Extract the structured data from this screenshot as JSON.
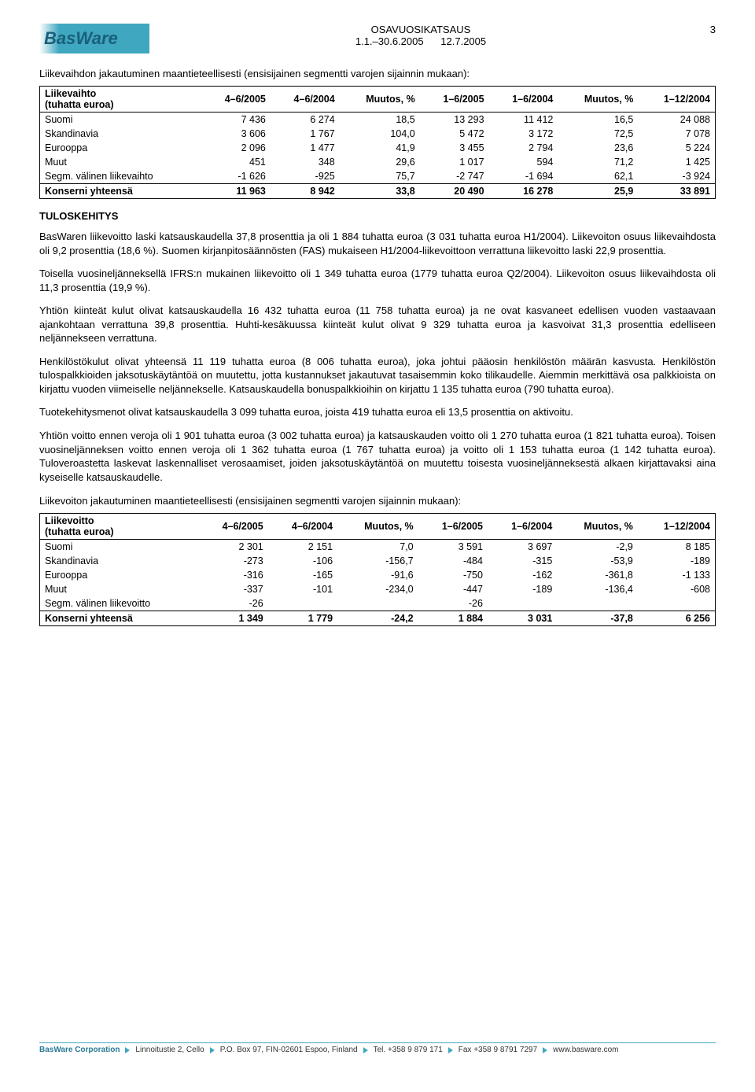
{
  "header": {
    "logo_text": "BasWare",
    "doc_type": "OSAVUOSIKATSAUS",
    "period": "1.1.–30.6.2005",
    "date": "12.7.2005",
    "page_number": "3"
  },
  "section1": {
    "intro": "Liikevaihdon jakautuminen maantieteellisesti (ensisijainen segmentti varojen sijainnin mukaan):",
    "table_label1": "Liikevaihto",
    "table_label2": "(tuhatta euroa)",
    "columns": [
      "4–6/2005",
      "4–6/2004",
      "Muutos, %",
      "1–6/2005",
      "1–6/2004",
      "Muutos, %",
      "1–12/2004"
    ],
    "rows": [
      {
        "label": "Suomi",
        "cells": [
          "7 436",
          "6 274",
          "18,5",
          "13 293",
          "11 412",
          "16,5",
          "24 088"
        ]
      },
      {
        "label": "Skandinavia",
        "cells": [
          "3 606",
          "1 767",
          "104,0",
          "5 472",
          "3 172",
          "72,5",
          "7 078"
        ]
      },
      {
        "label": "Eurooppa",
        "cells": [
          "2 096",
          "1 477",
          "41,9",
          "3 455",
          "2 794",
          "23,6",
          "5 224"
        ]
      },
      {
        "label": "Muut",
        "cells": [
          "451",
          "348",
          "29,6",
          "1 017",
          "594",
          "71,2",
          "1 425"
        ]
      },
      {
        "label": "Segm. välinen liikevaihto",
        "cells": [
          "-1 626",
          "-925",
          "75,7",
          "-2 747",
          "-1 694",
          "62,1",
          "-3 924"
        ]
      }
    ],
    "total": {
      "label": "Konserni yhteensä",
      "cells": [
        "11 963",
        "8 942",
        "33,8",
        "20 490",
        "16 278",
        "25,9",
        "33 891"
      ]
    }
  },
  "tuloskehitys": {
    "heading": "TULOSKEHITYS",
    "p1": "BasWaren liikevoitto laski katsauskaudella 37,8 prosenttia ja oli 1 884 tuhatta euroa (3 031 tuhatta euroa H1/2004). Liikevoiton osuus liikevaihdosta oli 9,2 prosenttia (18,6 %). Suomen kirjanpitosäännösten (FAS) mukaiseen H1/2004-liikevoittoon verrattuna liikevoitto laski 22,9 prosenttia.",
    "p2": "Toisella vuosineljänneksellä IFRS:n mukainen liikevoitto oli 1 349 tuhatta euroa (1779 tuhatta euroa Q2/2004). Liikevoiton osuus liikevaihdosta oli 11,3 prosenttia (19,9 %).",
    "p3": "Yhtiön kiinteät kulut olivat katsauskaudella 16 432 tuhatta euroa (11 758 tuhatta euroa) ja ne ovat kasvaneet edellisen vuoden vastaavaan ajankohtaan verrattuna 39,8 prosenttia. Huhti-kesäkuussa kiinteät kulut olivat 9 329 tuhatta euroa ja kasvoivat 31,3 prosenttia edelliseen neljännekseen verrattuna.",
    "p4": "Henkilöstökulut olivat yhteensä 11 119 tuhatta euroa (8 006 tuhatta euroa), joka johtui pääosin henkilöstön määrän kasvusta. Henkilöstön tulospalkkioiden jaksotuskäytäntöä on muutettu, jotta kustannukset jakautuvat tasaisemmin koko tilikaudelle. Aiemmin merkittävä osa palkkioista on kirjattu vuoden viimeiselle neljännekselle. Katsauskaudella bonuspalkkioihin on kirjattu 1 135 tuhatta euroa (790 tuhatta euroa).",
    "p5": "Tuotekehitysmenot olivat katsauskaudella 3 099 tuhatta euroa, joista 419 tuhatta euroa eli 13,5 prosenttia on aktivoitu.",
    "p6": "Yhtiön voitto ennen veroja oli 1 901 tuhatta euroa (3 002 tuhatta euroa) ja katsauskauden voitto oli 1 270 tuhatta euroa (1 821 tuhatta euroa). Toisen vuosineljänneksen voitto ennen veroja oli 1 362 tuhatta euroa (1 767 tuhatta euroa) ja voitto oli 1 153 tuhatta euroa (1 142 tuhatta euroa). Tuloveroastetta laskevat laskennalliset verosaamiset, joiden jaksotuskäytäntöä on muutettu toisesta vuosineljänneksestä alkaen kirjattavaksi aina kyseiselle katsauskaudelle.",
    "p7": "Liikevoiton jakautuminen maantieteellisesti (ensisijainen segmentti varojen sijainnin mukaan):"
  },
  "section2": {
    "table_label1": "Liikevoitto",
    "table_label2": "(tuhatta euroa)",
    "columns": [
      "4–6/2005",
      "4–6/2004",
      "Muutos, %",
      "1–6/2005",
      "1–6/2004",
      "Muutos, %",
      "1–12/2004"
    ],
    "rows": [
      {
        "label": "Suomi",
        "cells": [
          "2 301",
          "2 151",
          "7,0",
          "3 591",
          "3 697",
          "-2,9",
          "8 185"
        ]
      },
      {
        "label": "Skandinavia",
        "cells": [
          "-273",
          "-106",
          "-156,7",
          "-484",
          "-315",
          "-53,9",
          "-189"
        ]
      },
      {
        "label": "Eurooppa",
        "cells": [
          "-316",
          "-165",
          "-91,6",
          "-750",
          "-162",
          "-361,8",
          "-1 133"
        ]
      },
      {
        "label": "Muut",
        "cells": [
          "-337",
          "-101",
          "-234,0",
          "-447",
          "-189",
          "-136,4",
          "-608"
        ]
      },
      {
        "label": "Segm. välinen liikevoitto",
        "cells": [
          "-26",
          "",
          "",
          "-26",
          "",
          "",
          ""
        ]
      }
    ],
    "total": {
      "label": "Konserni yhteensä",
      "cells": [
        "1 349",
        "1 779",
        "-24,2",
        "1 884",
        "3 031",
        "-37,8",
        "6 256"
      ]
    }
  },
  "footer": {
    "corp": "BasWare Corporation",
    "addr": "Linnoitustie 2, Cello",
    "pobox": "P.O. Box 97, FIN-02601 Espoo, Finland",
    "tel": "Tel. +358 9 879 171",
    "fax": "Fax +358 9 8791 7297",
    "web": "www.basware.com"
  }
}
